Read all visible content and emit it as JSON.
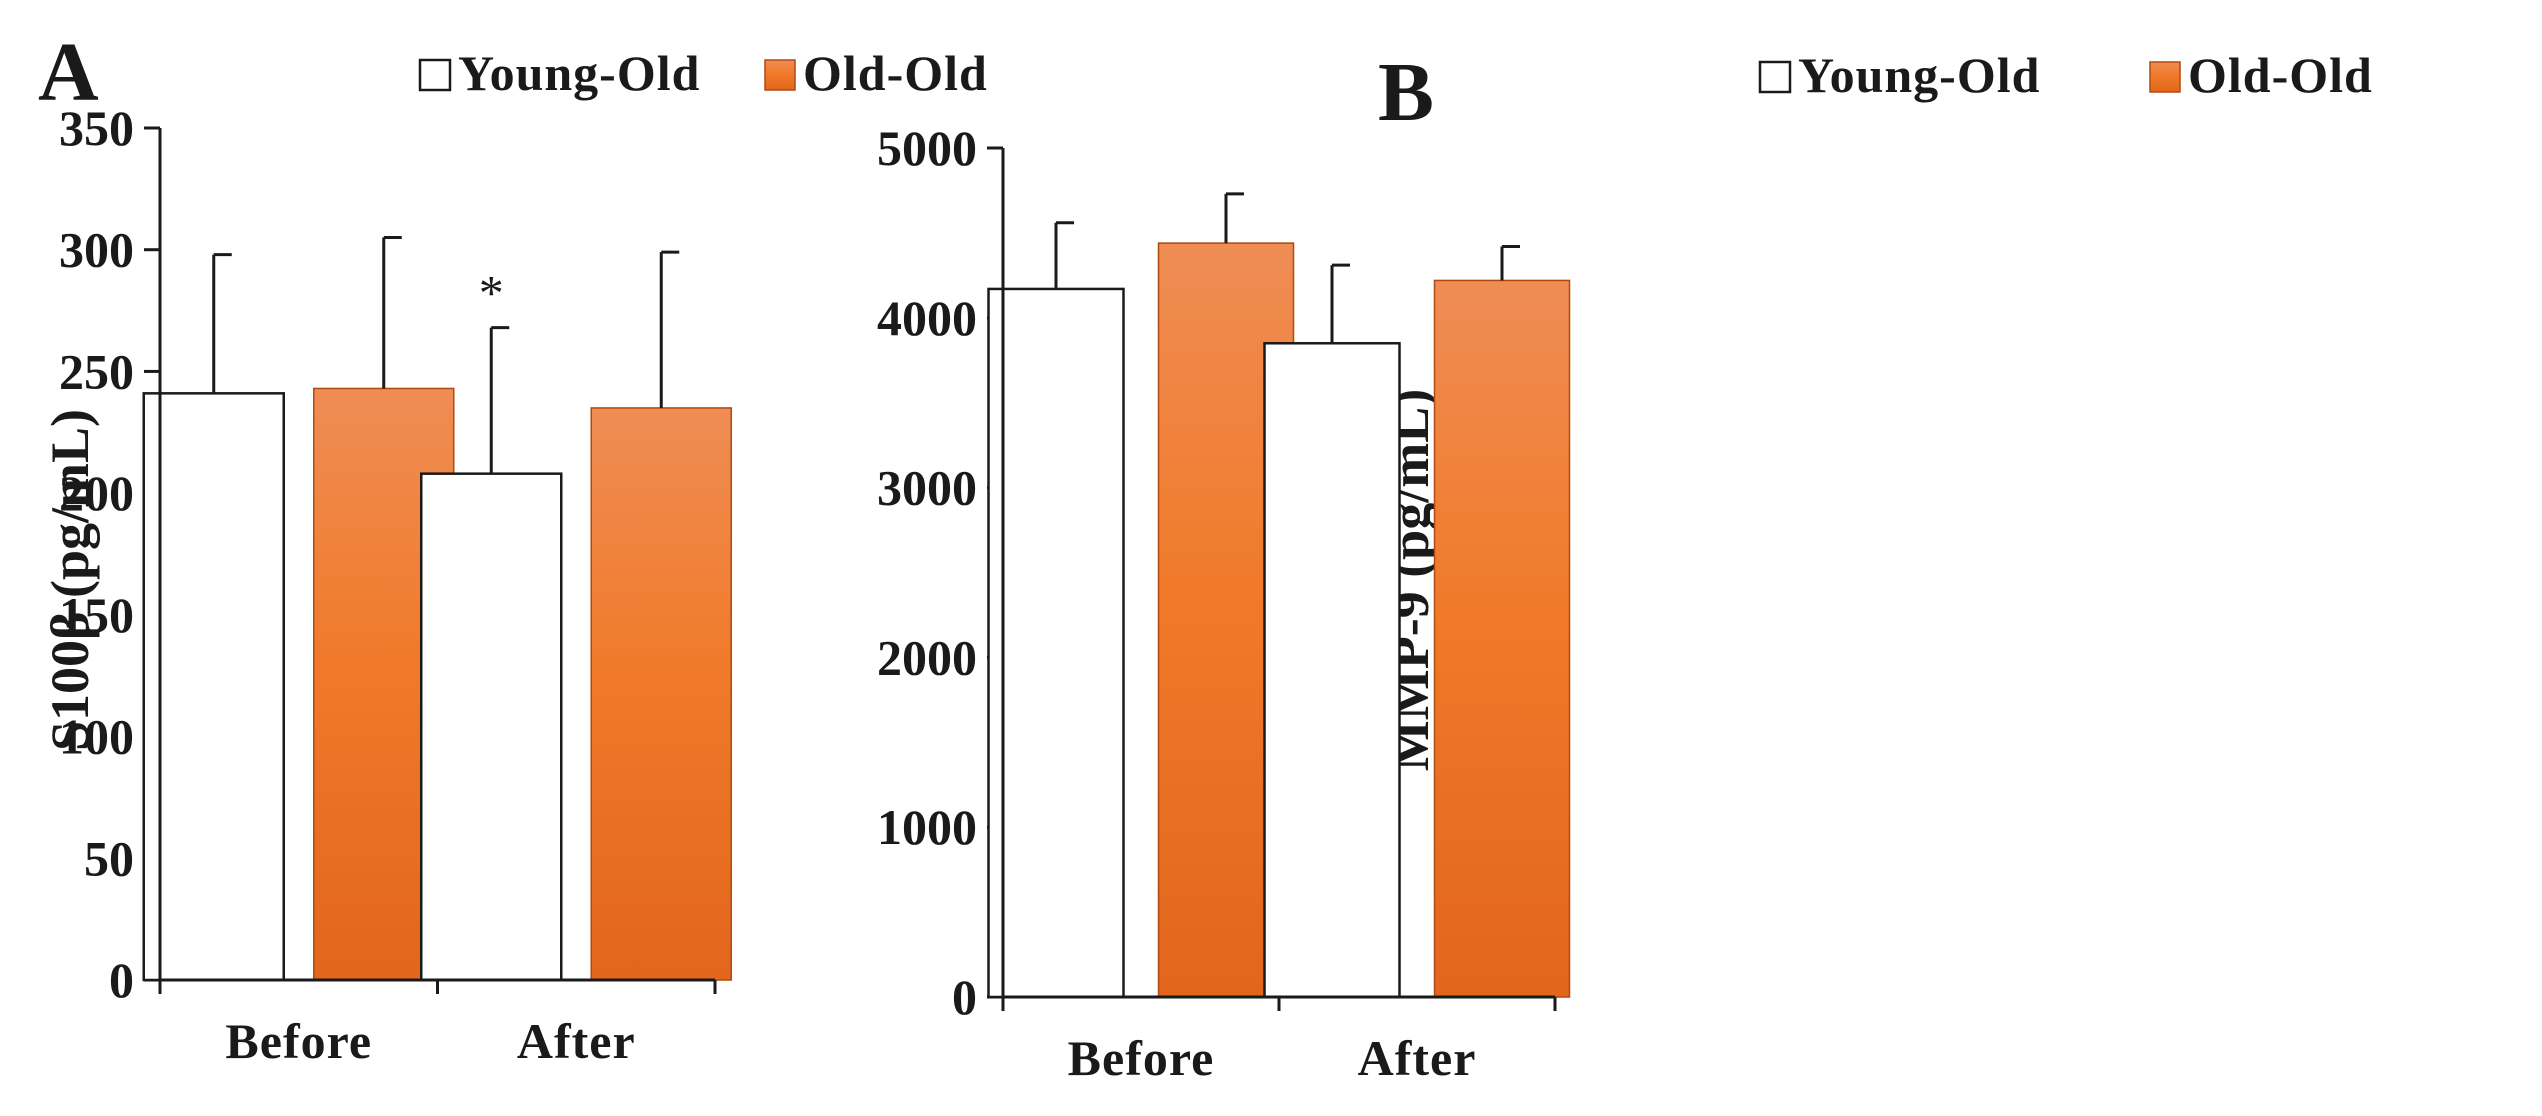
{
  "colors": {
    "young_fill": "#ffffff",
    "old_top": "#ef8d55",
    "old_mid": "#f07a2a",
    "old_bottom": "#e2661c",
    "ink": "#1a1a1a"
  },
  "chart_data": [
    {
      "panel": "A",
      "type": "bar",
      "title": "",
      "xlabel": "",
      "ylabel": "S100β (pg/mL)",
      "ylim": [
        0,
        350
      ],
      "yticks": [
        0,
        50,
        100,
        150,
        200,
        250,
        300,
        350
      ],
      "categories": [
        "Before",
        "After"
      ],
      "legend": [
        "Young-Old",
        "Old-Old"
      ],
      "legend_position": "top-center",
      "series": [
        {
          "name": "Young-Old",
          "values": [
            241,
            208
          ],
          "errors": [
            57,
            60
          ]
        },
        {
          "name": "Old-Old",
          "values": [
            243,
            235
          ],
          "errors": [
            62,
            64
          ]
        }
      ],
      "annotations": [
        {
          "text": "*",
          "category": "After",
          "series": "Young-Old"
        }
      ]
    },
    {
      "panel": "B",
      "type": "bar",
      "title": "",
      "xlabel": "",
      "ylabel": "MMP-9 (pg/mL)",
      "ylim": [
        0,
        5000
      ],
      "yticks": [
        0,
        1000,
        2000,
        3000,
        4000,
        5000
      ],
      "categories": [
        "Before",
        "After"
      ],
      "legend": [
        "Young-Old",
        "Old-Old"
      ],
      "legend_position": "top-center",
      "series": [
        {
          "name": "Young-Old",
          "values": [
            4170,
            3850
          ],
          "errors": [
            390,
            460
          ]
        },
        {
          "name": "Old-Old",
          "values": [
            4440,
            4220
          ],
          "errors": [
            290,
            200
          ]
        }
      ],
      "annotations": []
    }
  ]
}
